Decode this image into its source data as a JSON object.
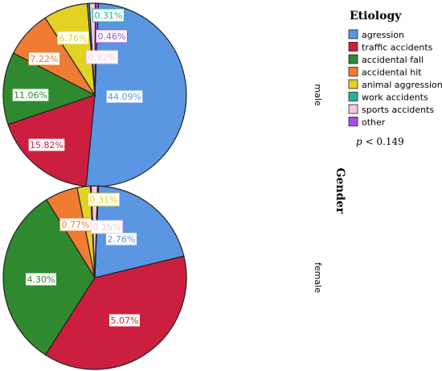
{
  "legend": {
    "title": "Etiology",
    "pvalue_symbol": "p",
    "pvalue_text": " < 0.149"
  },
  "panel_axis_label": "Gender",
  "chart_data": [
    {
      "type": "pie",
      "panel_label": "male",
      "categories": [
        "agression",
        "traffic accidents",
        "accidental fall",
        "accidental hit",
        "animal aggression",
        "work accidents",
        "sports accidents",
        "other"
      ],
      "values": [
        44.09,
        15.82,
        11.06,
        7.22,
        6.76,
        0.31,
        0.92,
        0.46
      ],
      "value_labels": [
        "44.09%",
        "15.82%",
        "11.06%",
        "7.22%",
        "6.76%",
        "0.31%",
        "0.92%",
        "0.46%"
      ],
      "colors": [
        "#5b96e3",
        "#cc1f3f",
        "#2f8a2f",
        "#f07c33",
        "#e3d223",
        "#21b3a3",
        "#f7c5e0",
        "#a54ee6"
      ]
    },
    {
      "type": "pie",
      "panel_label": "female",
      "categories": [
        "agression",
        "traffic accidents",
        "accidental fall",
        "accidental hit",
        "animal aggression",
        "work accidents",
        "sports accidents",
        "other"
      ],
      "values": [
        2.76,
        5.07,
        4.3,
        0.77,
        0.31,
        0.02,
        0.15,
        0.02
      ],
      "value_labels": [
        "2.76%",
        "5.07%",
        "4.30%",
        "0.77%",
        "0.31%",
        "",
        "0.15%",
        ""
      ],
      "colors": [
        "#5b96e3",
        "#cc1f3f",
        "#2f8a2f",
        "#f07c33",
        "#e3d223",
        "#21b3a3",
        "#f7c5e0",
        "#a54ee6"
      ]
    }
  ]
}
